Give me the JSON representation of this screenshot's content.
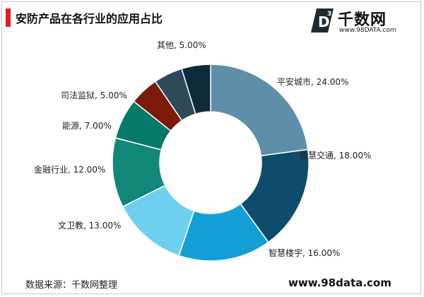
{
  "header": {
    "title": "安防产品在各行业的应用占比"
  },
  "logo": {
    "mark_text": "D",
    "mark_superscript": "3",
    "name": "千数网",
    "url": "www.98DATA.com"
  },
  "footer": {
    "source": "数据来源：千数网整理",
    "site": "www.98data.com"
  },
  "chart_data": {
    "type": "pie",
    "variant": "donut",
    "title": "安防产品在各行业的应用占比",
    "unit": "%",
    "legend": "none",
    "slices": [
      {
        "label": "平安城市",
        "value": 24.0,
        "text": "平安城市, 24.00%",
        "color": "#5f8fa8"
      },
      {
        "label": "智慧交通",
        "value": 18.0,
        "text": "智慧交通, 18.00%",
        "color": "#0d4d6b"
      },
      {
        "label": "智慧楼宇",
        "value": 16.0,
        "text": "智慧楼宇, 16.00%",
        "color": "#139fd6"
      },
      {
        "label": "文卫教",
        "value": 13.0,
        "text": "文卫教, 13.00%",
        "color": "#6fcfef"
      },
      {
        "label": "金融行业",
        "value": 12.0,
        "text": "金融行业, 12.00%",
        "color": "#11877a"
      },
      {
        "label": "能源",
        "value": 7.0,
        "text": "能源, 7.00%",
        "color": "#037a6a"
      },
      {
        "label": "司法监狱",
        "value": 5.0,
        "text": "司法监狱, 5.00%",
        "color": "#7b1a0a"
      },
      {
        "label": "其他",
        "value": 5.0,
        "text": "其他, 5.00%",
        "color": "#2e4a5a"
      },
      {
        "label": "",
        "value": 5.0,
        "text": "",
        "color": "#0c2a3a"
      }
    ]
  }
}
